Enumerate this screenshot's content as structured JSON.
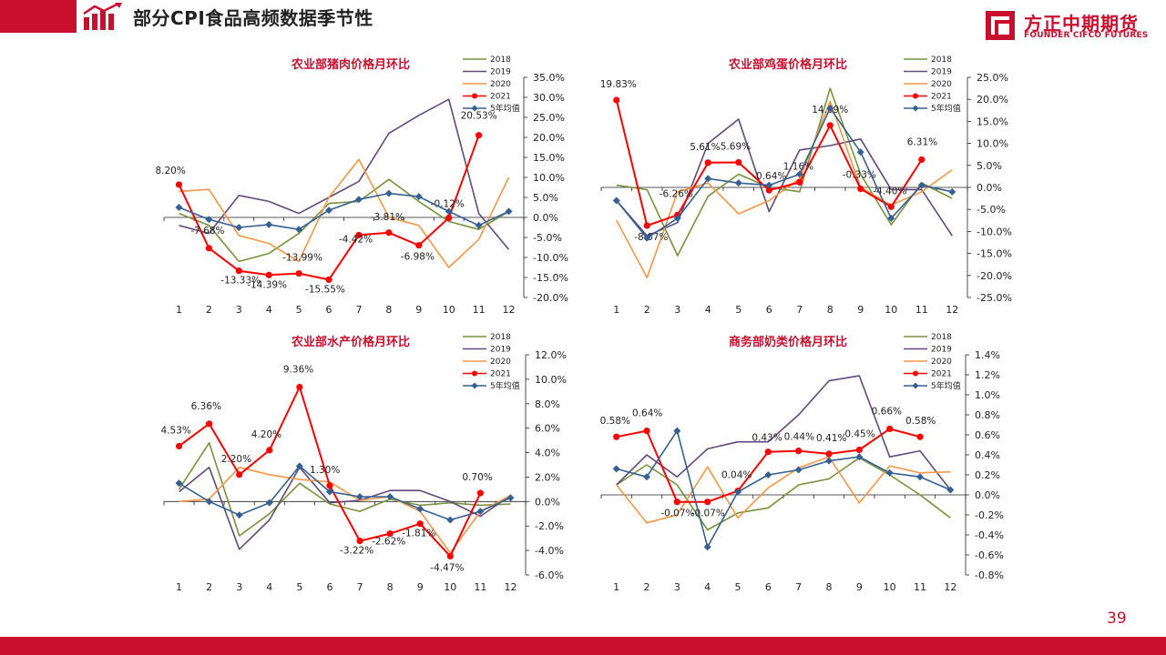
{
  "header": {
    "title": "部分CPI食品高频数据季节性",
    "brand_cn": "方正中期期货",
    "brand_en": "FOUNDER CIFCO FUTURES"
  },
  "footer": {
    "page_number": "39"
  },
  "colors": {
    "accent": "#c8102e",
    "series_2018": "#77933c",
    "series_2019": "#604a7b",
    "series_2020": "#f79646",
    "series_2021": "#ff0000",
    "series_avg": "#376092"
  },
  "icons": {
    "logo": "bar-chart-arrow-icon",
    "brand": "founder-logo-icon"
  },
  "chart_data": [
    {
      "type": "line",
      "title": "农业部猪肉价格月环比",
      "x": [
        1,
        2,
        3,
        4,
        5,
        6,
        7,
        8,
        9,
        10,
        11,
        12
      ],
      "x_tick_labels": [
        "1",
        "2",
        "3",
        "4",
        "5",
        "6",
        "7",
        "8",
        "9",
        "10",
        "11",
        "12"
      ],
      "ylim": [
        -20,
        35
      ],
      "y_ticks": [
        35,
        30,
        25,
        20,
        15,
        10,
        5,
        0,
        -5,
        -10,
        -15,
        -20
      ],
      "y_tick_labels": [
        "35.0%",
        "30.0%",
        "25.0%",
        "20.0%",
        "15.0%",
        "10.0%",
        "5.0%",
        "0.0%",
        "-5.0%",
        "-10.0%",
        "-15.0%",
        "-20.0%"
      ],
      "legend_position": "top-right",
      "series": [
        {
          "name": "2018",
          "color": "#77933c",
          "marker": "none",
          "values": [
            1,
            -2,
            -11,
            -9,
            -4,
            3.5,
            4,
            9.5,
            4,
            -1,
            -3,
            1.5
          ]
        },
        {
          "name": "2019",
          "color": "#604a7b",
          "marker": "none",
          "values": [
            -2,
            -4,
            5.5,
            4,
            1,
            5,
            9,
            21,
            25.5,
            29.5,
            1,
            -8
          ]
        },
        {
          "name": "2020",
          "color": "#f79646",
          "marker": "none",
          "values": [
            6.5,
            7,
            -4.5,
            -6.5,
            -11,
            5,
            14.5,
            0,
            -2,
            -12.5,
            -5.5,
            10
          ]
        },
        {
          "name": "2021",
          "color": "#ff0000",
          "marker": "circle",
          "values": [
            8.2,
            -7.68,
            -13.33,
            -14.39,
            -13.99,
            -15.55,
            -4.42,
            -3.81,
            -6.98,
            -0.12,
            20.53,
            null
          ],
          "labels": [
            "8.20%",
            "-7.68%",
            "-13.33%",
            "-14.39%",
            "-13.99%",
            "-15.55%",
            "-4.42%",
            "-3.81%",
            "-6.98%",
            "-0.12%",
            "20.53%",
            ""
          ]
        },
        {
          "name": "5年均值",
          "color": "#376092",
          "marker": "diamond",
          "values": [
            2.5,
            -0.5,
            -2.5,
            -1.8,
            -3,
            1.8,
            4.5,
            6,
            5.2,
            1.5,
            -2,
            1.5
          ]
        }
      ]
    },
    {
      "type": "line",
      "title": "农业部鸡蛋价格月环比",
      "x": [
        1,
        2,
        3,
        4,
        5,
        6,
        7,
        8,
        9,
        10,
        11,
        12
      ],
      "x_tick_labels": [
        "1",
        "2",
        "3",
        "4",
        "5",
        "6",
        "7",
        "8",
        "9",
        "10",
        "11",
        "12"
      ],
      "ylim": [
        -25,
        25
      ],
      "y_ticks": [
        25,
        20,
        15,
        10,
        5,
        0,
        -5,
        -10,
        -15,
        -20,
        -25
      ],
      "y_tick_labels": [
        "25.0%",
        "20.0%",
        "15.0%",
        "10.0%",
        "5.0%",
        "0.0%",
        "-5.0%",
        "-10.0%",
        "-15.0%",
        "-20.0%",
        "-25.0%"
      ],
      "legend_position": "top-right",
      "series": [
        {
          "name": "2018",
          "color": "#77933c",
          "marker": "none",
          "values": [
            0.5,
            -0.5,
            -15.5,
            -2,
            3,
            0,
            -1,
            22.5,
            3,
            -8.5,
            1,
            -2.5
          ]
        },
        {
          "name": "2019",
          "color": "#604a7b",
          "marker": "none",
          "values": [
            -3,
            -11,
            -8,
            10,
            15.5,
            -5.5,
            8.5,
            9.5,
            11,
            -0.5,
            -0.5,
            -11
          ]
        },
        {
          "name": "2020",
          "color": "#f79646",
          "marker": "none",
          "values": [
            -7.5,
            -20.5,
            -1,
            1,
            -6,
            -3,
            2,
            19.5,
            0,
            -4,
            -1,
            4
          ]
        },
        {
          "name": "2021",
          "color": "#ff0000",
          "marker": "circle",
          "values": [
            19.83,
            -8.67,
            -6.26,
            5.61,
            5.69,
            -0.64,
            1.16,
            14.09,
            -0.33,
            -4.4,
            6.31,
            null
          ],
          "labels": [
            "19.83%",
            "-8.67%",
            "-6.26%",
            "5.61%",
            "5.69%",
            "-0.64%",
            "1.16%",
            "14.09%",
            "-0.33%",
            "-4.40%",
            "6.31%",
            ""
          ]
        },
        {
          "name": "5年均值",
          "color": "#376092",
          "marker": "diamond",
          "values": [
            -3,
            -11.5,
            -7,
            2,
            1,
            0.5,
            3,
            18,
            8,
            -7,
            0.5,
            -1
          ]
        }
      ]
    },
    {
      "type": "line",
      "title": "农业部水产价格月环比",
      "x": [
        1,
        2,
        3,
        4,
        5,
        6,
        7,
        8,
        9,
        10,
        11,
        12
      ],
      "x_tick_labels": [
        "1",
        "2",
        "3",
        "4",
        "5",
        "6",
        "7",
        "8",
        "9",
        "10",
        "11",
        "12"
      ],
      "ylim": [
        -6,
        12
      ],
      "y_ticks": [
        12,
        10,
        8,
        6,
        4,
        2,
        0,
        -2,
        -4,
        -6
      ],
      "y_tick_labels": [
        "12.0%",
        "10.0%",
        "8.0%",
        "6.0%",
        "4.0%",
        "2.0%",
        "0.0%",
        "-2.0%",
        "-4.0%",
        "-6.0%"
      ],
      "legend_position": "top-right",
      "series": [
        {
          "name": "2018",
          "color": "#77933c",
          "marker": "none",
          "values": [
            1,
            4.8,
            -2.8,
            -1,
            1.5,
            -0.2,
            -0.8,
            0.2,
            -0.3,
            -0.1,
            -0.3,
            -0.2
          ]
        },
        {
          "name": "2019",
          "color": "#604a7b",
          "marker": "none",
          "values": [
            0.8,
            2.8,
            -3.9,
            -1.5,
            2.8,
            -0.1,
            0.1,
            0.9,
            0.9,
            0,
            -1.2,
            0.5
          ]
        },
        {
          "name": "2020",
          "color": "#f79646",
          "marker": "none",
          "values": [
            0,
            0.2,
            2.8,
            2.2,
            1.8,
            1.6,
            0.1,
            0.4,
            -0.8,
            -4.2,
            -0.8,
            0.5
          ]
        },
        {
          "name": "2021",
          "color": "#ff0000",
          "marker": "circle",
          "values": [
            4.53,
            6.36,
            2.2,
            4.2,
            9.36,
            1.3,
            -3.22,
            -2.62,
            -1.81,
            -4.47,
            0.7,
            null
          ],
          "labels": [
            "4.53%",
            "6.36%",
            "2.20%",
            "4.20%",
            "9.36%",
            "1.30%",
            "-3.22%",
            "-2.62%",
            "-1.81%",
            "-4.47%",
            "0.70%",
            ""
          ]
        },
        {
          "name": "5年均值",
          "color": "#376092",
          "marker": "diamond",
          "values": [
            1.5,
            0,
            -1.1,
            -0.1,
            2.9,
            0.8,
            0.4,
            0.4,
            -0.6,
            -1.5,
            -0.8,
            0.3
          ]
        }
      ]
    },
    {
      "type": "line",
      "title": "商务部奶类价格月环比",
      "x": [
        1,
        2,
        3,
        4,
        5,
        6,
        7,
        8,
        9,
        10,
        11,
        12
      ],
      "x_tick_labels": [
        "1",
        "2",
        "3",
        "4",
        "5",
        "6",
        "7",
        "8",
        "9",
        "10",
        "11",
        "12"
      ],
      "ylim": [
        -0.8,
        1.4
      ],
      "y_ticks": [
        1.4,
        1.2,
        1.0,
        0.8,
        0.6,
        0.4,
        0.2,
        0,
        -0.2,
        -0.4,
        -0.6,
        -0.8
      ],
      "y_tick_labels": [
        "1.4%",
        "1.2%",
        "1.0%",
        "0.8%",
        "0.6%",
        "0.4%",
        "0.2%",
        "0.0%",
        "-0.2%",
        "-0.4%",
        "-0.6%",
        "-0.8%"
      ],
      "legend_position": "top-right",
      "series": [
        {
          "name": "2018",
          "color": "#77933c",
          "marker": "none",
          "values": [
            0.1,
            0.3,
            0.1,
            -0.35,
            -0.18,
            -0.13,
            0.1,
            0.16,
            0.37,
            0.2,
            0,
            -0.23
          ]
        },
        {
          "name": "2019",
          "color": "#604a7b",
          "marker": "none",
          "values": [
            0.1,
            0.4,
            0.18,
            0.46,
            0.53,
            0.53,
            0.8,
            1.14,
            1.19,
            0.38,
            0.44,
            0.05
          ]
        },
        {
          "name": "2020",
          "color": "#f79646",
          "marker": "none",
          "values": [
            0.1,
            -0.28,
            -0.2,
            0.28,
            -0.23,
            0.07,
            0.27,
            0.38,
            -0.08,
            0.29,
            0.22,
            0.23
          ]
        },
        {
          "name": "2021",
          "color": "#ff0000",
          "marker": "circle",
          "values": [
            0.58,
            0.64,
            -0.07,
            -0.07,
            0.04,
            0.43,
            0.44,
            0.41,
            0.45,
            0.66,
            0.58,
            null
          ],
          "labels": [
            "0.58%",
            "0.64%",
            "-0.07%",
            "-0.07%",
            "0.04%",
            "0.43%",
            "0.44%",
            "0.41%",
            "0.45%",
            "0.66%",
            "0.58%",
            ""
          ]
        },
        {
          "name": "5年均值",
          "color": "#376092",
          "marker": "diamond",
          "values": [
            0.26,
            0.18,
            0.64,
            -0.52,
            0.03,
            0.2,
            0.25,
            0.34,
            0.38,
            0.22,
            0.18,
            0.05
          ]
        }
      ]
    }
  ]
}
